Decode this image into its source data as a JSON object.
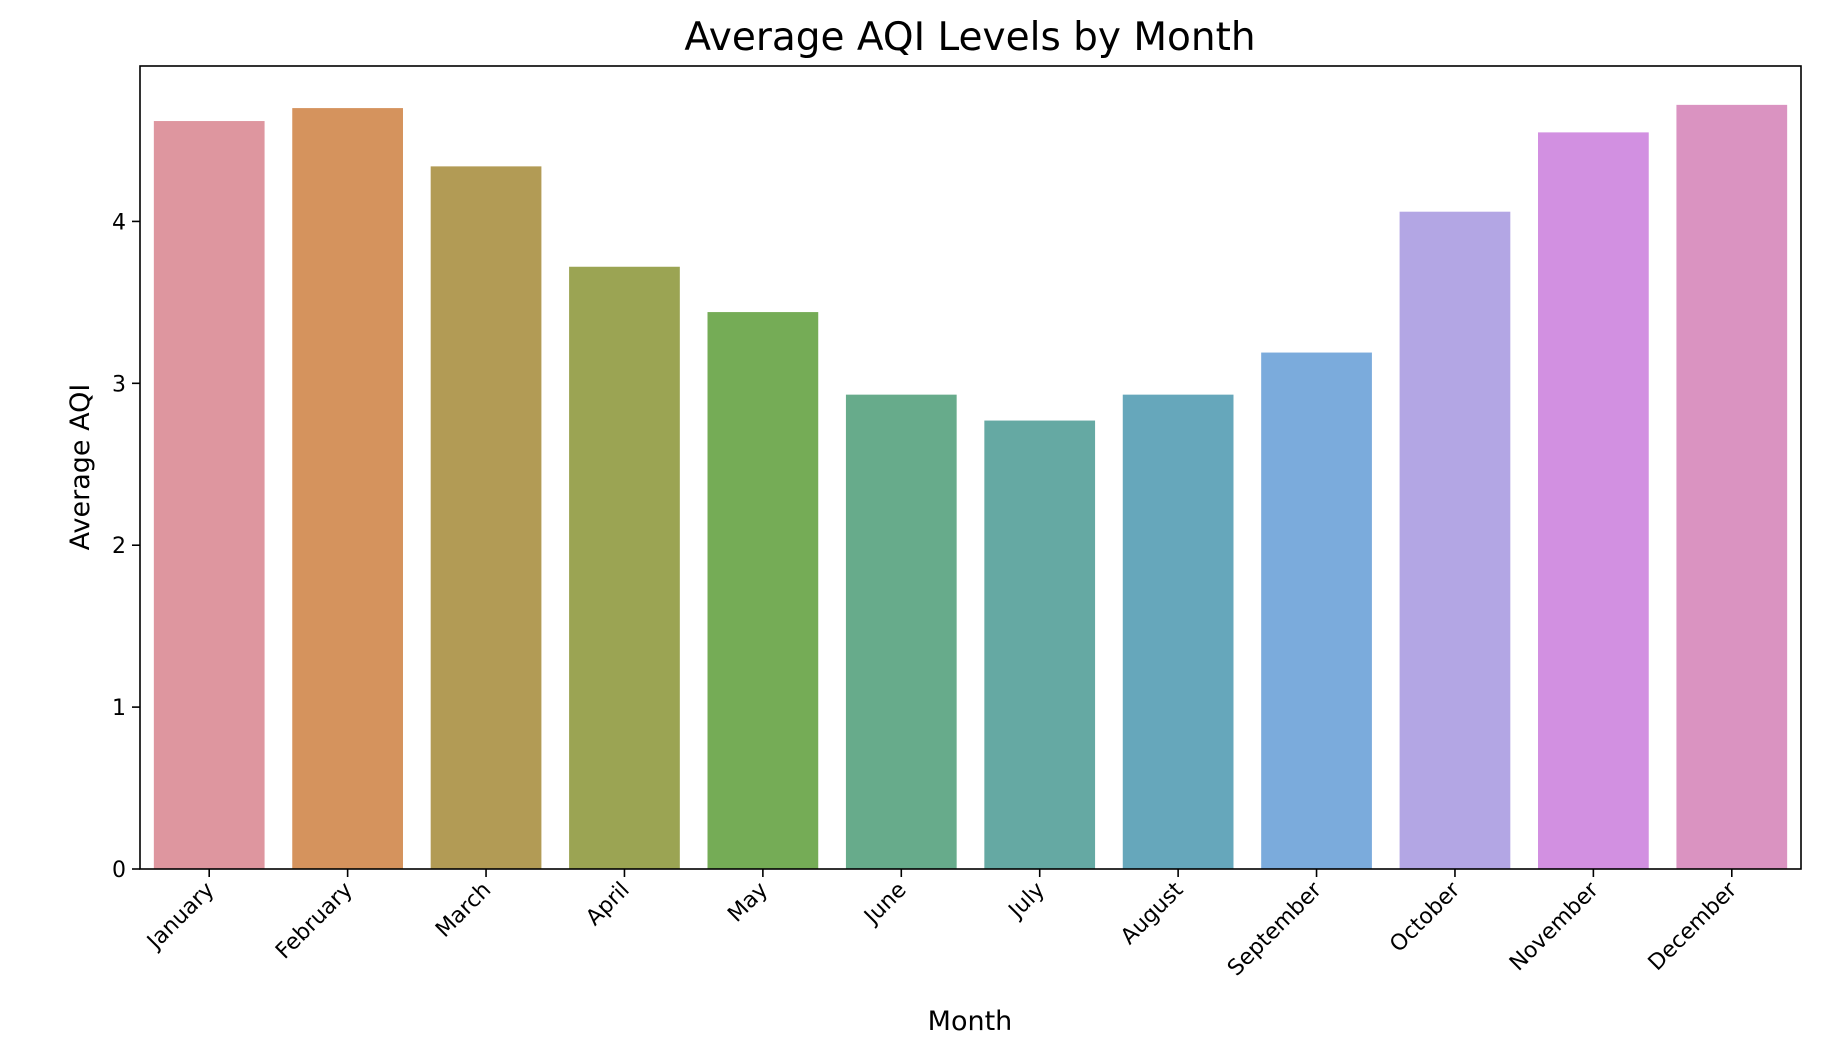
{
  "chart_data": {
    "type": "bar",
    "title": "Average AQI Levels by Month",
    "xlabel": "Month",
    "ylabel": "Average AQI",
    "ylim": [
      0,
      4.96
    ],
    "yticks": [
      0,
      1,
      2,
      3,
      4
    ],
    "grid": false,
    "legend": "none",
    "categories": [
      "January",
      "February",
      "March",
      "April",
      "May",
      "June",
      "July",
      "August",
      "September",
      "October",
      "November",
      "December"
    ],
    "values": [
      4.62,
      4.7,
      4.34,
      3.72,
      3.44,
      2.93,
      2.77,
      2.93,
      3.19,
      4.06,
      4.55,
      4.72
    ],
    "colors": [
      "#de969f",
      "#d5935d",
      "#b29b55",
      "#9ba453",
      "#75ac56",
      "#67ab8b",
      "#65a9a3",
      "#66a7bb",
      "#7babdc",
      "#b3a6e4",
      "#d290e1",
      "#da93c1"
    ]
  }
}
